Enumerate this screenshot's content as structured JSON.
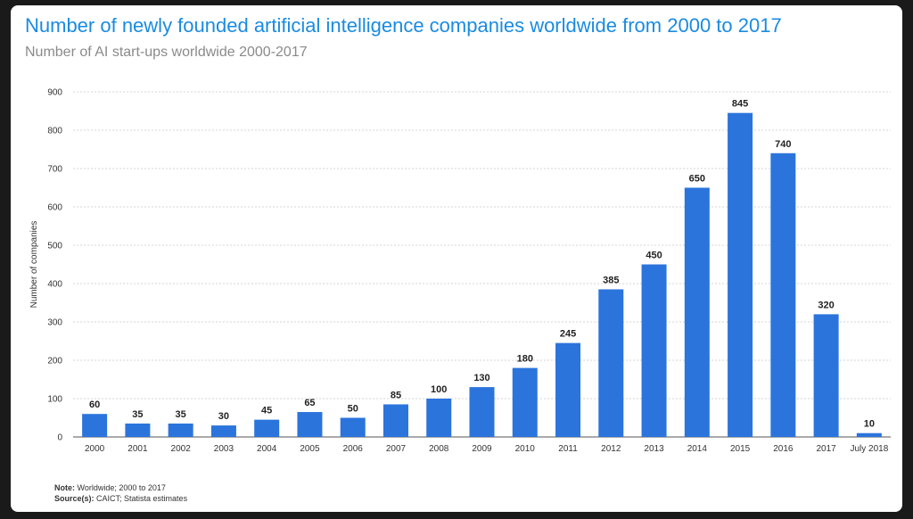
{
  "header": {
    "title": "Number of newly founded artificial intelligence companies worldwide from 2000 to 2017",
    "subtitle": "Number of AI start-ups worldwide 2000-2017"
  },
  "notes": {
    "note_label": "Note:",
    "note_text": "Worldwide; 2000 to 2017",
    "source_label": "Source(s):",
    "source_text": "CAICT; Statista estimates"
  },
  "colors": {
    "bar": "#2b74dc",
    "title": "#1a8be0",
    "grid": "#c8c8c8"
  },
  "chart_data": {
    "type": "bar",
    "title": "Number of newly founded artificial intelligence companies worldwide from 2000 to 2017",
    "subtitle": "Number of AI start-ups worldwide 2000-2017",
    "xlabel": "",
    "ylabel": "Number of companies",
    "categories": [
      "2000",
      "2001",
      "2002",
      "2003",
      "2004",
      "2005",
      "2006",
      "2007",
      "2008",
      "2009",
      "2010",
      "2011",
      "2012",
      "2013",
      "2014",
      "2015",
      "2016",
      "2017",
      "July 2018"
    ],
    "values": [
      60,
      35,
      35,
      30,
      45,
      65,
      50,
      85,
      100,
      130,
      180,
      245,
      385,
      450,
      650,
      845,
      740,
      320,
      10
    ],
    "ylim": [
      0,
      900
    ],
    "yticks": [
      0,
      100,
      200,
      300,
      400,
      500,
      600,
      700,
      800,
      900
    ],
    "grid": true,
    "data_labels": true
  }
}
